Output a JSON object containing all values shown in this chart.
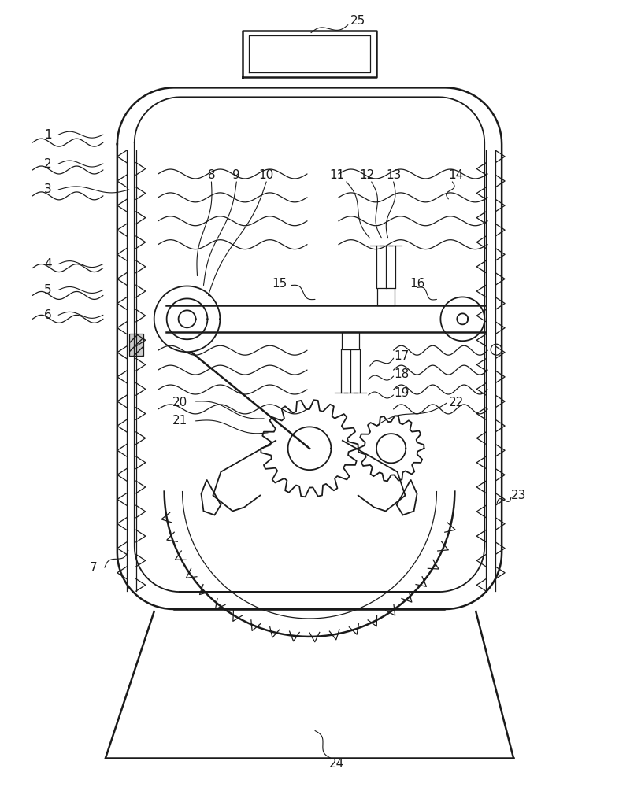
{
  "bg_color": "#ffffff",
  "line_color": "#1a1a1a",
  "fig_width": 7.86,
  "fig_height": 10.0
}
